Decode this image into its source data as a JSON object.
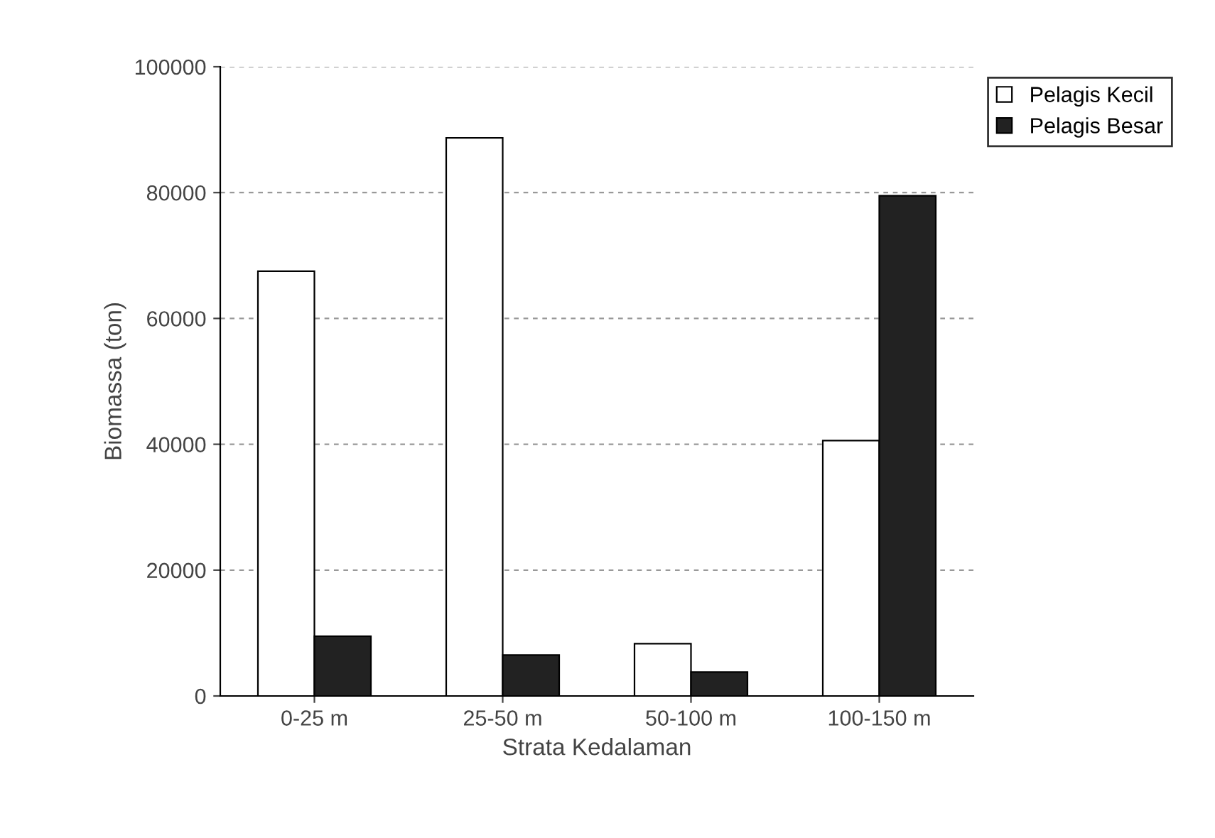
{
  "chart_data": {
    "type": "bar",
    "xlabel": "Strata Kedalaman",
    "ylabel": "Biomassa (ton)",
    "categories": [
      "0-25 m",
      "25-50 m",
      "50-100 m",
      "100-150 m"
    ],
    "series": [
      {
        "name": "Pelagis Kecil",
        "color": "#ffffff",
        "values": [
          67500,
          88700,
          8300,
          40600
        ]
      },
      {
        "name": "Pelagis Besar",
        "color": "#222222",
        "values": [
          9500,
          6500,
          3800,
          79500
        ]
      }
    ],
    "ylim": [
      0,
      100000
    ],
    "yticks": [
      0,
      20000,
      40000,
      60000,
      80000,
      100000
    ],
    "grid": "y",
    "legend": "top right"
  }
}
